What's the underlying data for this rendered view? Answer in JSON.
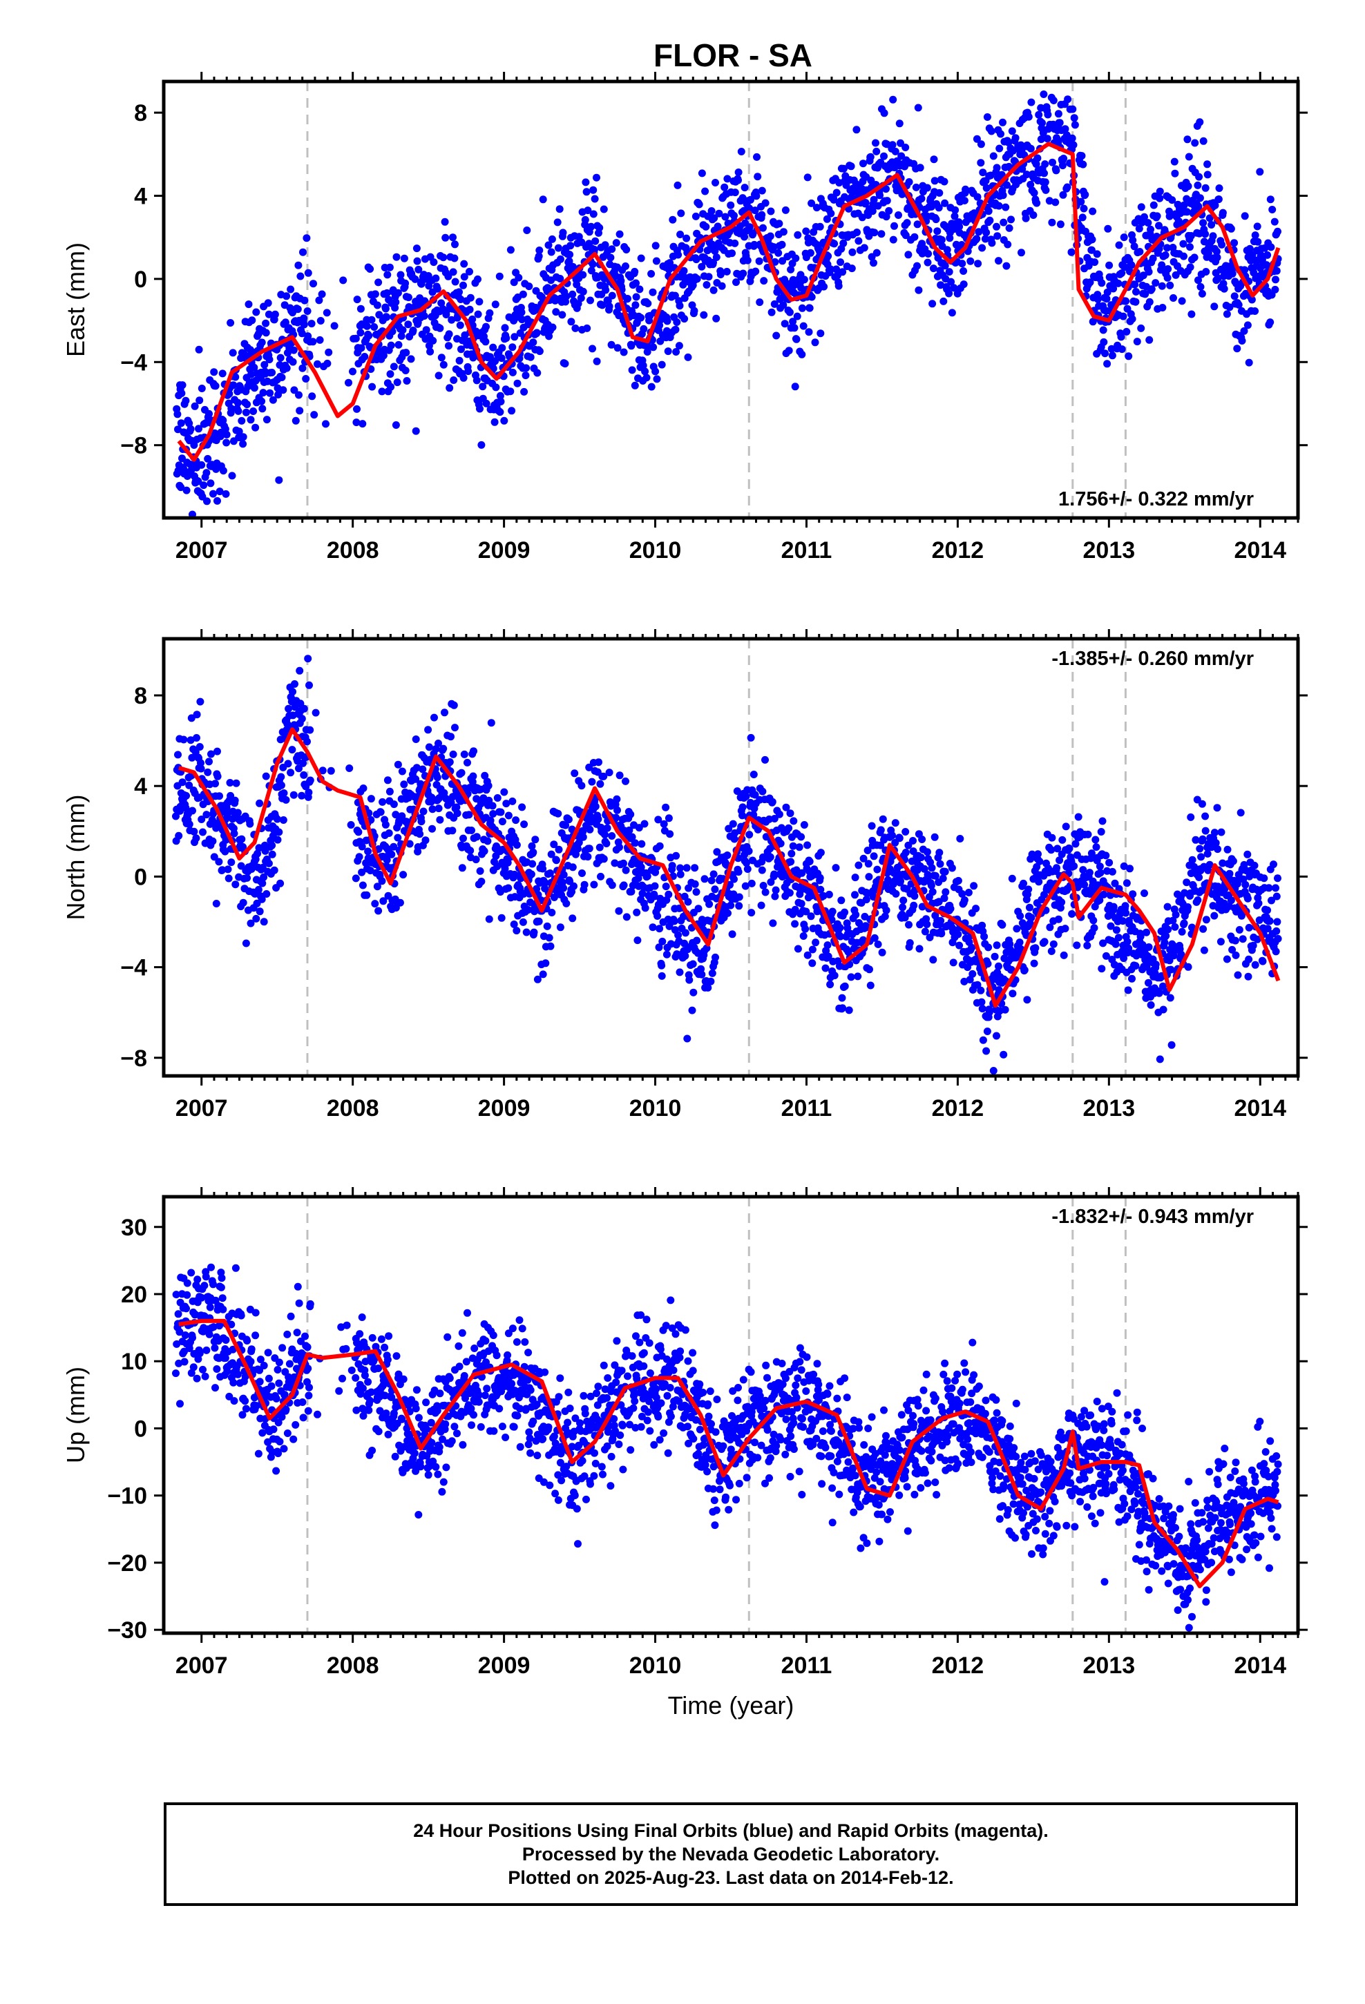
{
  "chart_data": [
    {
      "type": "scatter",
      "title": "FLOR - SA",
      "xlabel": "",
      "ylabel": "East (mm)",
      "xlim": [
        2006.75,
        2014.25
      ],
      "ylim": [
        -11.5,
        9.5
      ],
      "x_ticks": [
        2007,
        2008,
        2009,
        2010,
        2011,
        2012,
        2013,
        2014
      ],
      "x_tick_labels": [
        "2007",
        "2008",
        "2009",
        "2010",
        "2011",
        "2012",
        "2013",
        "2014"
      ],
      "y_ticks": [
        -8,
        -4,
        0,
        4,
        8
      ],
      "y_tick_labels": [
        "−8",
        "−4",
        "0",
        "4",
        "8"
      ],
      "rate_label": "1.756+/- 0.322 mm/yr",
      "rate_position": "bottom-right",
      "breaks": [
        2007.7,
        2010.62,
        2012.76,
        2013.11
      ],
      "model": {
        "name": "",
        "color": "#ff0000",
        "x": [
          2006.85,
          2006.95,
          2007.05,
          2007.2,
          2007.4,
          2007.6,
          2007.75,
          2007.9,
          2008.0,
          2008.15,
          2008.3,
          2008.45,
          2008.6,
          2008.75,
          2008.85,
          2008.95,
          2009.1,
          2009.3,
          2009.5,
          2009.6,
          2009.75,
          2009.85,
          2009.95,
          2010.1,
          2010.3,
          2010.5,
          2010.62,
          2010.7,
          2010.8,
          2010.9,
          2011.0,
          2011.1,
          2011.25,
          2011.4,
          2011.6,
          2011.75,
          2011.85,
          2011.95,
          2012.05,
          2012.2,
          2012.4,
          2012.6,
          2012.76,
          2012.8,
          2012.9,
          2013.0,
          2013.11,
          2013.2,
          2013.35,
          2013.5,
          2013.65,
          2013.75,
          2013.85,
          2013.95,
          2014.05,
          2014.12
        ],
        "y": [
          -7.8,
          -8.7,
          -7.5,
          -4.5,
          -3.5,
          -2.8,
          -4.5,
          -6.6,
          -6.0,
          -3.2,
          -1.8,
          -1.5,
          -0.6,
          -2.0,
          -4.0,
          -4.8,
          -3.5,
          -0.8,
          0.5,
          1.2,
          -0.5,
          -2.8,
          -3.0,
          0.0,
          1.8,
          2.5,
          3.2,
          2.0,
          0.0,
          -1.0,
          -0.8,
          1.0,
          3.5,
          4.0,
          5.0,
          3.0,
          1.5,
          0.8,
          1.5,
          4.0,
          5.5,
          6.5,
          6.0,
          -0.5,
          -1.8,
          -2.0,
          -0.5,
          0.8,
          2.0,
          2.5,
          3.5,
          2.5,
          0.5,
          -0.8,
          0.0,
          1.5
        ]
      },
      "series": [
        {
          "name": "",
          "color": "#0000ff",
          "anchors_x": [
            2006.83,
            2006.95,
            2007.1,
            2007.3,
            2007.5,
            2007.7,
            2008.05,
            2008.3,
            2008.6,
            2008.95,
            2009.3,
            2009.6,
            2009.95,
            2010.3,
            2010.6,
            2010.95,
            2011.2,
            2011.55,
            2011.95,
            2012.2,
            2012.6,
            2012.76,
            2012.95,
            2013.2,
            2013.6,
            2013.85,
            2014.12
          ],
          "anchors_y": [
            -7.5,
            -8.5,
            -7.0,
            -4.5,
            -3.0,
            -2.5,
            -3.0,
            -2.0,
            -0.8,
            -4.5,
            -0.5,
            1.0,
            -3.0,
            1.5,
            3.0,
            -1.0,
            3.0,
            5.0,
            1.0,
            4.0,
            6.5,
            6.0,
            -2.0,
            0.5,
            3.5,
            -0.5,
            1.5
          ],
          "noise_sd": 1.6,
          "gaps": [
            [
              2007.72,
              2008.02
            ]
          ]
        }
      ]
    },
    {
      "type": "scatter",
      "title": "",
      "xlabel": "",
      "ylabel": "North (mm)",
      "xlim": [
        2006.75,
        2014.25
      ],
      "ylim": [
        -8.8,
        10.5
      ],
      "x_ticks": [
        2007,
        2008,
        2009,
        2010,
        2011,
        2012,
        2013,
        2014
      ],
      "x_tick_labels": [
        "2007",
        "2008",
        "2009",
        "2010",
        "2011",
        "2012",
        "2013",
        "2014"
      ],
      "y_ticks": [
        -8,
        -4,
        0,
        4,
        8
      ],
      "y_tick_labels": [
        "−8",
        "−4",
        "0",
        "4",
        "8"
      ],
      "rate_label": "-1.385+/- 0.260 mm/yr",
      "rate_position": "top-right",
      "breaks": [
        2007.7,
        2010.62,
        2012.76,
        2013.11
      ],
      "model": {
        "name": "",
        "color": "#ff0000",
        "x": [
          2006.85,
          2006.95,
          2007.1,
          2007.25,
          2007.35,
          2007.5,
          2007.6,
          2007.7,
          2007.8,
          2007.9,
          2008.05,
          2008.15,
          2008.25,
          2008.4,
          2008.55,
          2008.7,
          2008.85,
          2009.0,
          2009.1,
          2009.25,
          2009.4,
          2009.6,
          2009.75,
          2009.9,
          2010.05,
          2010.2,
          2010.35,
          2010.5,
          2010.62,
          2010.75,
          2010.9,
          2011.05,
          2011.25,
          2011.4,
          2011.55,
          2011.7,
          2011.8,
          2011.95,
          2012.1,
          2012.25,
          2012.4,
          2012.55,
          2012.7,
          2012.76,
          2012.8,
          2012.95,
          2013.11,
          2013.2,
          2013.3,
          2013.4,
          2013.55,
          2013.7,
          2013.85,
          2014.0,
          2014.12
        ],
        "y": [
          4.8,
          4.6,
          3.0,
          0.8,
          1.5,
          5.0,
          6.5,
          5.5,
          4.2,
          3.8,
          3.5,
          1.0,
          -0.3,
          2.5,
          5.3,
          4.0,
          2.3,
          1.5,
          0.5,
          -1.5,
          0.8,
          3.9,
          2.0,
          0.8,
          0.5,
          -1.5,
          -3.0,
          0.5,
          2.6,
          2.0,
          0.0,
          -0.5,
          -3.8,
          -3.0,
          1.4,
          0.0,
          -1.3,
          -1.8,
          -2.5,
          -5.7,
          -4.0,
          -1.5,
          0.1,
          -0.3,
          -1.8,
          -0.5,
          -0.8,
          -1.5,
          -2.5,
          -5.0,
          -3.0,
          0.5,
          -1.0,
          -2.5,
          -4.6
        ]
      },
      "series": [
        {
          "name": "",
          "color": "#0000ff",
          "anchors_x": [
            2006.83,
            2007.0,
            2007.25,
            2007.4,
            2007.6,
            2007.7,
            2008.05,
            2008.25,
            2008.55,
            2008.85,
            2009.25,
            2009.6,
            2009.9,
            2010.3,
            2010.62,
            2011.0,
            2011.25,
            2011.55,
            2011.95,
            2012.25,
            2012.55,
            2012.76,
            2013.0,
            2013.35,
            2013.6,
            2013.85,
            2014.12
          ],
          "anchors_y": [
            4.0,
            4.0,
            1.0,
            0.0,
            7.0,
            6.0,
            2.0,
            0.5,
            5.0,
            2.5,
            -1.5,
            3.0,
            0.5,
            -3.5,
            2.5,
            -0.5,
            -3.5,
            0.5,
            -1.5,
            -5.0,
            -1.0,
            0.0,
            -1.0,
            -4.5,
            0.5,
            -1.0,
            -2.5
          ],
          "noise_sd": 1.4,
          "gaps": [
            [
              2007.72,
              2008.02
            ]
          ]
        }
      ]
    },
    {
      "type": "scatter",
      "title": "",
      "xlabel": "Time (year)",
      "ylabel": "Up (mm)",
      "xlim": [
        2006.75,
        2014.25
      ],
      "ylim": [
        -30.5,
        34.5
      ],
      "x_ticks": [
        2007,
        2008,
        2009,
        2010,
        2011,
        2012,
        2013,
        2014
      ],
      "x_tick_labels": [
        "2007",
        "2008",
        "2009",
        "2010",
        "2011",
        "2012",
        "2013",
        "2014"
      ],
      "y_ticks": [
        -30,
        -20,
        -10,
        0,
        10,
        20,
        30
      ],
      "y_tick_labels": [
        "−30",
        "−20",
        "−10",
        "0",
        "10",
        "20",
        "30"
      ],
      "rate_label": "-1.832+/- 0.943 mm/yr",
      "rate_position": "top-right",
      "breaks": [
        2007.7,
        2010.62,
        2012.76,
        2013.11
      ],
      "model": {
        "name": "",
        "color": "#ff0000",
        "x": [
          2006.85,
          2007.0,
          2007.15,
          2007.3,
          2007.45,
          2007.6,
          2007.7,
          2007.8,
          2008.0,
          2008.15,
          2008.3,
          2008.45,
          2008.6,
          2008.8,
          2009.05,
          2009.25,
          2009.45,
          2009.6,
          2009.8,
          2010.0,
          2010.15,
          2010.3,
          2010.45,
          2010.62,
          2010.8,
          2011.0,
          2011.2,
          2011.4,
          2011.55,
          2011.7,
          2011.9,
          2012.05,
          2012.2,
          2012.4,
          2012.55,
          2012.7,
          2012.76,
          2012.8,
          2012.95,
          2013.11,
          2013.2,
          2013.3,
          2013.45,
          2013.6,
          2013.75,
          2013.9,
          2014.05,
          2014.12
        ],
        "y": [
          15.5,
          16.0,
          16.0,
          9.0,
          1.5,
          5.0,
          11.0,
          10.5,
          11.0,
          11.5,
          5.0,
          -3.0,
          2.0,
          8.0,
          9.5,
          7.0,
          -5.0,
          -2.0,
          6.0,
          7.5,
          7.5,
          2.0,
          -7.0,
          -1.5,
          3.0,
          4.0,
          2.0,
          -9.0,
          -10.0,
          -2.0,
          1.5,
          2.5,
          1.0,
          -10.0,
          -12.0,
          -6.0,
          -0.5,
          -6.0,
          -5.0,
          -5.0,
          -5.5,
          -14.0,
          -18.0,
          -23.5,
          -20.0,
          -12.0,
          -10.5,
          -11.0
        ]
      },
      "series": [
        {
          "name": "",
          "color": "#0000ff",
          "anchors_x": [
            2006.83,
            2007.1,
            2007.3,
            2007.45,
            2007.7,
            2008.05,
            2008.45,
            2008.8,
            2009.05,
            2009.45,
            2009.8,
            2010.1,
            2010.45,
            2010.65,
            2011.0,
            2011.4,
            2011.9,
            2012.1,
            2012.45,
            2012.76,
            2013.0,
            2013.11,
            2013.3,
            2013.5,
            2013.75,
            2014.12
          ],
          "anchors_y": [
            15.0,
            15.0,
            10.0,
            1.0,
            10.0,
            10.0,
            -4.0,
            8.0,
            8.0,
            -6.0,
            6.0,
            8.0,
            -7.0,
            2.0,
            4.0,
            -9.0,
            1.0,
            2.0,
            -11.0,
            -5.0,
            -5.0,
            -5.0,
            -15.0,
            -22.0,
            -12.0,
            -10.0
          ],
          "noise_sd": 4.2,
          "gaps": [
            [
              2007.72,
              2008.02
            ]
          ]
        }
      ]
    }
  ],
  "footer": {
    "line1": "24 Hour Positions Using Final Orbits (blue) and Rapid Orbits (magenta).",
    "line2": "Processed by the Nevada Geodetic Laboratory.",
    "line3": "Plotted on 2025-Aug-23. Last data on 2014-Feb-12."
  }
}
